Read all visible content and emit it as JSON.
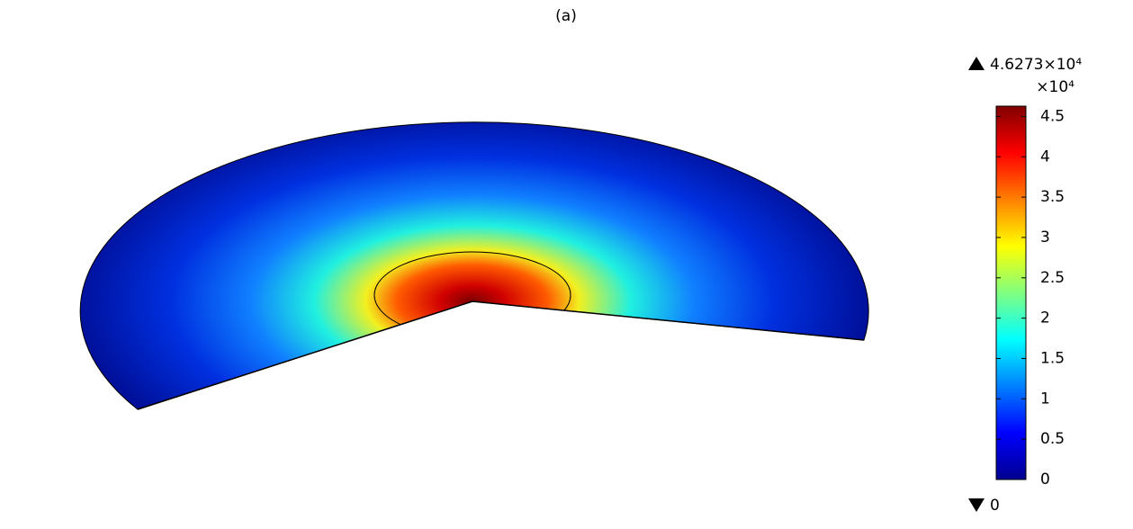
{
  "chart_data": {
    "type": "surface",
    "title": "(a)",
    "colormap": "jet",
    "max": {
      "value": 4.6273,
      "label": "4.6273×10⁴"
    },
    "min": 0,
    "multiplier": "×10⁴",
    "clim": [
      0,
      4.6273
    ],
    "cticks": [
      0,
      0.5,
      1,
      1.5,
      2,
      2.5,
      3,
      3.5,
      4,
      4.5
    ]
  }
}
